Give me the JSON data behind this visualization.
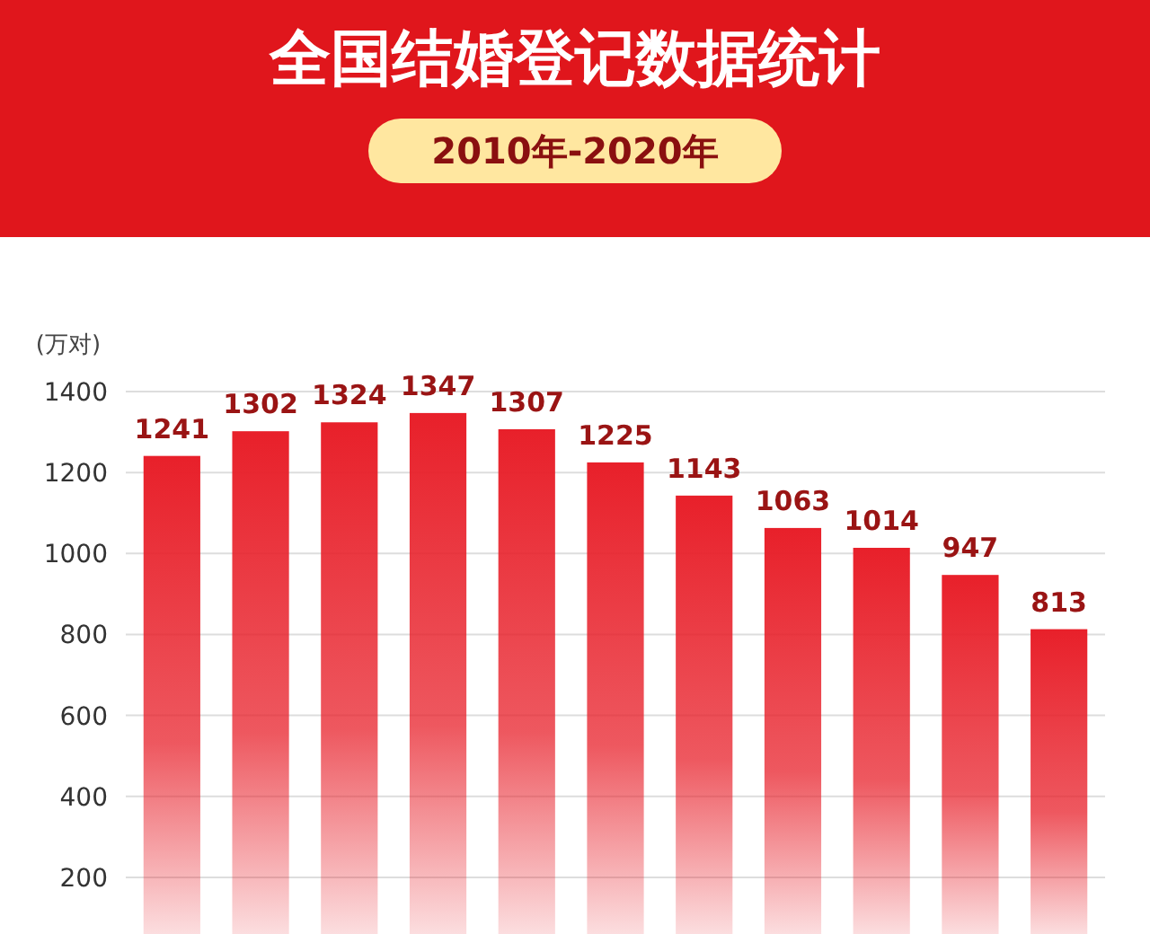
{
  "chart_data": {
    "type": "bar",
    "title": "全国结婚登记数据统计",
    "subtitle": "2010年-2020年",
    "ylabel": "(万对)",
    "categories": [
      null,
      null,
      null,
      null,
      null,
      null,
      null,
      null,
      null,
      null,
      null
    ],
    "values": [
      1241,
      1302,
      1324,
      1347,
      1307,
      1225,
      1143,
      1063,
      1014,
      947,
      813
    ],
    "color": "#e8202a",
    "ylim": [
      60,
      1400
    ],
    "yticks": [
      200,
      400,
      600,
      800,
      1000,
      1200,
      1400
    ],
    "grid": "y",
    "data_labels": true
  }
}
